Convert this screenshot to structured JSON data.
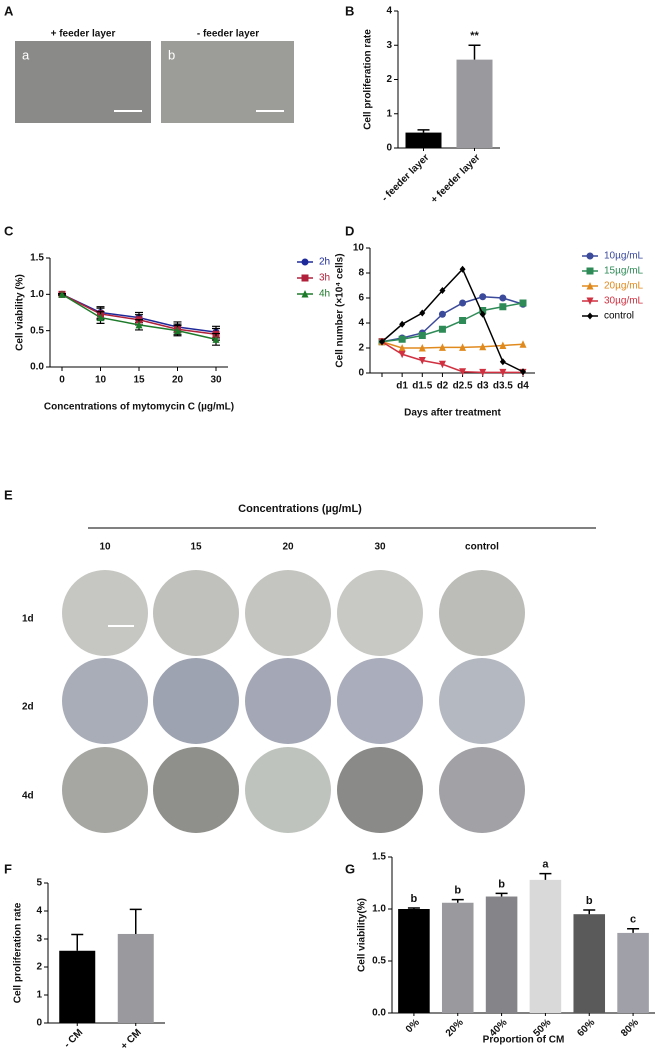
{
  "figure": {
    "panel_labels": [
      "A",
      "B",
      "C",
      "D",
      "E",
      "F",
      "G"
    ],
    "panel_a": {
      "titles": [
        "+ feeder layer",
        "- feeder layer"
      ],
      "image_labels": [
        "a",
        "b"
      ]
    },
    "panel_e": {
      "title": "Concentrations (µg/mL)",
      "columns": [
        "10",
        "15",
        "20",
        "30",
        "control"
      ],
      "rows": [
        "1d",
        "2d",
        "4d"
      ]
    }
  },
  "chart_data": [
    {
      "type": "bar",
      "ylabel": "Cell proliferation rate",
      "categories": [
        "- feeder layer",
        "+ feeder layer"
      ],
      "values": [
        0.45,
        2.58
      ],
      "errors": [
        0.08,
        0.42
      ],
      "colors": [
        "#000000",
        "#9a9a9e"
      ],
      "annotations": [
        null,
        "**"
      ],
      "ylim": [
        0,
        4
      ],
      "yticks": [
        0,
        1,
        2,
        3,
        4
      ],
      "grid": false
    },
    {
      "type": "line",
      "xlabel": "Concentrations of mytomycin C (µg/mL)",
      "ylabel": "Cell viability (%)",
      "categories": [
        "0",
        "10",
        "15",
        "20",
        "30"
      ],
      "series": [
        {
          "name": "2h",
          "color": "#1f2a9a",
          "marker": "circle",
          "values": [
            1.0,
            0.75,
            0.68,
            0.55,
            0.48
          ],
          "errors": [
            0.01,
            0.08,
            0.07,
            0.07,
            0.08
          ]
        },
        {
          "name": "3h",
          "color": "#b0203a",
          "marker": "square",
          "values": [
            1.0,
            0.73,
            0.65,
            0.52,
            0.45
          ],
          "errors": [
            0.01,
            0.08,
            0.07,
            0.07,
            0.08
          ]
        },
        {
          "name": "4h",
          "color": "#1d7a2a",
          "marker": "triangle",
          "values": [
            1.0,
            0.68,
            0.58,
            0.5,
            0.38
          ],
          "errors": [
            0.01,
            0.08,
            0.07,
            0.07,
            0.08
          ]
        }
      ],
      "ylim": [
        0,
        1.5
      ],
      "yticks": [
        {
          "value": 0,
          "label": "0.0"
        },
        {
          "value": 0.5,
          "label": "0.5"
        },
        {
          "value": 1,
          "label": "1.0"
        },
        {
          "value": 1.5,
          "label": "1.5"
        }
      ],
      "grid": false
    },
    {
      "type": "line",
      "xlabel": "Days after treatment",
      "ylabel": "Cell number (×10⁴ cells)",
      "categories": [
        null,
        "d1",
        "d1.5",
        "d2",
        "d2.5",
        "d3",
        "d3.5",
        "d4"
      ],
      "series": [
        {
          "name": "10µg/mL",
          "color": "#3b4a9b",
          "marker": "circle",
          "values": [
            2.5,
            2.8,
            3.2,
            4.7,
            5.6,
            6.1,
            6.0,
            5.5
          ]
        },
        {
          "name": "15µg/mL",
          "color": "#2e8b57",
          "marker": "square",
          "values": [
            2.5,
            2.7,
            3.0,
            3.5,
            4.2,
            5.0,
            5.3,
            5.6
          ]
        },
        {
          "name": "20µg/mL",
          "color": "#e08a1e",
          "marker": "triangle",
          "values": [
            2.5,
            2.0,
            2.0,
            2.05,
            2.05,
            2.1,
            2.2,
            2.3
          ]
        },
        {
          "name": "30µg/mL",
          "color": "#d03040",
          "marker": "triangle-down",
          "values": [
            2.5,
            1.5,
            1.0,
            0.7,
            0.1,
            0.05,
            0.05,
            0.05
          ]
        },
        {
          "name": "control",
          "color": "#000000",
          "marker": "diamond",
          "values": [
            2.5,
            3.9,
            4.8,
            6.6,
            8.3,
            4.7,
            0.9,
            0.1
          ]
        }
      ],
      "ylim": [
        0,
        10
      ],
      "yticks": [
        0,
        2,
        4,
        6,
        8,
        10
      ],
      "grid": false
    },
    {
      "type": "bar",
      "ylabel": "Cell proliferation rate",
      "categories": [
        "- CM",
        "+ CM"
      ],
      "values": [
        2.58,
        3.18
      ],
      "errors": [
        0.58,
        0.88
      ],
      "colors": [
        "#000000",
        "#9a9a9e"
      ],
      "ylim": [
        0,
        5
      ],
      "yticks": [
        0,
        1,
        2,
        3,
        4,
        5
      ],
      "grid": false
    },
    {
      "type": "bar",
      "xlabel": "Proportion of CM",
      "ylabel": "Cell viability(%)",
      "categories": [
        "0%",
        "20%",
        "40%",
        "50%",
        "60%",
        "80%"
      ],
      "values": [
        1.0,
        1.06,
        1.12,
        1.28,
        0.95,
        0.77
      ],
      "errors": [
        0.01,
        0.03,
        0.03,
        0.06,
        0.04,
        0.04
      ],
      "colors": [
        "#000000",
        "#9a9a9e",
        "#858589",
        "#d9d9d9",
        "#5a5a5a",
        "#9fa0a8"
      ],
      "annotations": [
        "b",
        "b",
        "b",
        "a",
        "b",
        "c"
      ],
      "ylim": [
        0,
        1.5
      ],
      "yticks": [
        {
          "value": 0,
          "label": "0.0"
        },
        {
          "value": 0.5,
          "label": "0.5"
        },
        {
          "value": 1,
          "label": "1.0"
        },
        {
          "value": 1.5,
          "label": "1.5"
        }
      ],
      "grid": false
    }
  ]
}
